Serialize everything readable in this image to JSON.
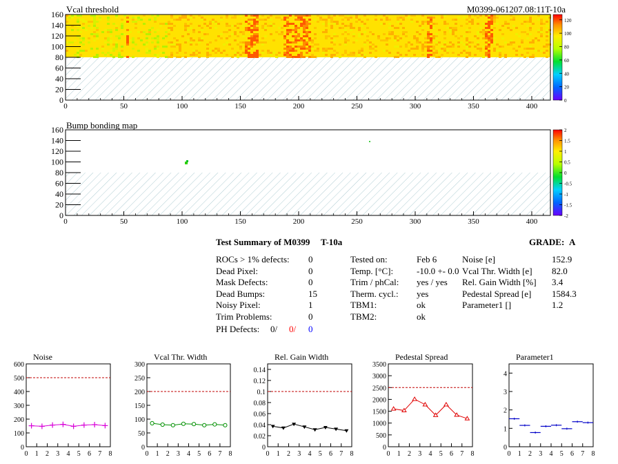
{
  "module_id": "M0399-061207.08:11T-10a",
  "map1": {
    "title": "Vcal threshold",
    "x_ticks": [
      "0",
      "50",
      "100",
      "150",
      "200",
      "250",
      "300",
      "350",
      "400"
    ],
    "y_ticks": [
      "0",
      "20",
      "40",
      "60",
      "80",
      "100",
      "120",
      "140",
      "160"
    ],
    "z_ticks": [
      "0",
      "20",
      "40",
      "60",
      "80",
      "100",
      "120"
    ],
    "colorbar_range": [
      0,
      128
    ]
  },
  "map2": {
    "title": "Bump bonding map",
    "x_ticks": [
      "0",
      "50",
      "100",
      "150",
      "200",
      "250",
      "300",
      "350",
      "400"
    ],
    "y_ticks": [
      "0",
      "20",
      "40",
      "60",
      "80",
      "100",
      "120",
      "140",
      "160"
    ],
    "z_ticks": [
      "-2",
      "-1.5",
      "-1",
      "-0.5",
      "0",
      "0.5",
      "1",
      "1.5",
      "2"
    ],
    "colorbar_range": [
      -2,
      2
    ]
  },
  "summary": {
    "title": "Test Summary of M0399",
    "temp_label": "T-10a",
    "grade_label": "GRADE:",
    "grade": "A",
    "col1": [
      {
        "label": "ROCs > 1% defects:",
        "value": "0"
      },
      {
        "label": "Dead Pixel:",
        "value": "0"
      },
      {
        "label": "Mask Defects:",
        "value": "0"
      },
      {
        "label": "Dead Bumps:",
        "value": "15"
      },
      {
        "label": "Noisy Pixel:",
        "value": "1"
      },
      {
        "label": "Trim Problems:",
        "value": "0"
      }
    ],
    "ph_defects": {
      "label": "PH Defects:",
      "v1": "0/",
      "v2": "0/",
      "v3": "0"
    },
    "col2": [
      {
        "label": "Tested on:",
        "value": "Feb 6"
      },
      {
        "label": "Temp. [°C]:",
        "value": "-10.0 +- 0.0"
      },
      {
        "label": "Trim / phCal:",
        "value": "yes / yes"
      },
      {
        "label": "Therm. cycl.:",
        "value": "yes"
      },
      {
        "label": "TBM1:",
        "value": "ok"
      },
      {
        "label": "TBM2:",
        "value": "ok"
      }
    ],
    "col3": [
      {
        "label": "Noise [e]",
        "value": "152.9"
      },
      {
        "label": "Vcal Thr. Width [e]",
        "value": "82.0"
      },
      {
        "label": "Rel. Gain Width [%]",
        "value": "3.4"
      },
      {
        "label": "Pedestal Spread [e]",
        "value": "1584.3"
      },
      {
        "label": "Parameter1 []",
        "value": "1.2"
      }
    ]
  },
  "colors": {
    "noise": "#d800d8",
    "vcal": "#009000",
    "gain": "#000000",
    "pedestal": "#e00000",
    "param": "#0000c8",
    "limit": "#c00000",
    "red_text": "#ff0000",
    "blue_text": "#0000ff"
  },
  "chart_data": [
    {
      "type": "line",
      "title": "Noise",
      "x": [
        0,
        1,
        2,
        3,
        4,
        5,
        6,
        7
      ],
      "xlim": [
        0,
        8
      ],
      "ylim": [
        0,
        600
      ],
      "x_ticks": [
        "0",
        "1",
        "2",
        "3",
        "4",
        "5",
        "6",
        "7",
        "8"
      ],
      "y_ticks": [
        "0",
        "100",
        "200",
        "300",
        "400",
        "500",
        "600"
      ],
      "values": [
        152,
        148,
        157,
        162,
        148,
        157,
        160,
        153
      ],
      "limit": 500,
      "marker": "plus"
    },
    {
      "type": "line",
      "title": "Vcal Thr. Width",
      "x": [
        0,
        1,
        2,
        3,
        4,
        5,
        6,
        7
      ],
      "xlim": [
        0,
        8
      ],
      "ylim": [
        0,
        300
      ],
      "x_ticks": [
        "0",
        "1",
        "2",
        "3",
        "4",
        "5",
        "6",
        "7",
        "8"
      ],
      "y_ticks": [
        "0",
        "50",
        "100",
        "150",
        "200",
        "250",
        "300"
      ],
      "values": [
        85,
        80,
        78,
        83,
        82,
        78,
        81,
        78
      ],
      "limit": 200,
      "marker": "circle"
    },
    {
      "type": "line",
      "title": "Rel. Gain Width",
      "x": [
        0,
        1,
        2,
        3,
        4,
        5,
        6,
        7
      ],
      "xlim": [
        0,
        8
      ],
      "ylim": [
        0,
        0.15
      ],
      "x_ticks": [
        "0",
        "1",
        "2",
        "3",
        "4",
        "5",
        "6",
        "7",
        "8"
      ],
      "y_ticks": [
        "0",
        "0.02",
        "0.04",
        "0.06",
        "0.08",
        "0.1",
        "0.12",
        "0.14"
      ],
      "values": [
        0.037,
        0.034,
        0.041,
        0.036,
        0.031,
        0.035,
        0.032,
        0.029
      ],
      "limit": 0.1,
      "marker": "triangle-down"
    },
    {
      "type": "line",
      "title": "Pedestal Spread",
      "x": [
        0,
        1,
        2,
        3,
        4,
        5,
        6,
        7
      ],
      "xlim": [
        0,
        8
      ],
      "ylim": [
        0,
        3500
      ],
      "x_ticks": [
        "0",
        "1",
        "2",
        "3",
        "4",
        "5",
        "6",
        "7",
        "8"
      ],
      "y_ticks": [
        "0",
        "500",
        "1000",
        "1500",
        "2000",
        "2500",
        "3000",
        "3500"
      ],
      "values": [
        1600,
        1530,
        2010,
        1780,
        1330,
        1780,
        1340,
        1190
      ],
      "limit": 2500,
      "marker": "triangle-up"
    },
    {
      "type": "line",
      "title": "Parameter1",
      "x": [
        0,
        1,
        2,
        3,
        4,
        5,
        6,
        7
      ],
      "xlim": [
        0,
        8
      ],
      "ylim": [
        0,
        4.5
      ],
      "x_ticks": [
        "0",
        "1",
        "2",
        "3",
        "4",
        "5",
        "6",
        "7",
        "8"
      ],
      "y_ticks": [
        "0",
        "1",
        "2",
        "3",
        "4"
      ],
      "values": [
        1.52,
        1.16,
        0.77,
        1.11,
        1.17,
        0.98,
        1.36,
        1.31
      ],
      "marker": "hbar"
    }
  ]
}
